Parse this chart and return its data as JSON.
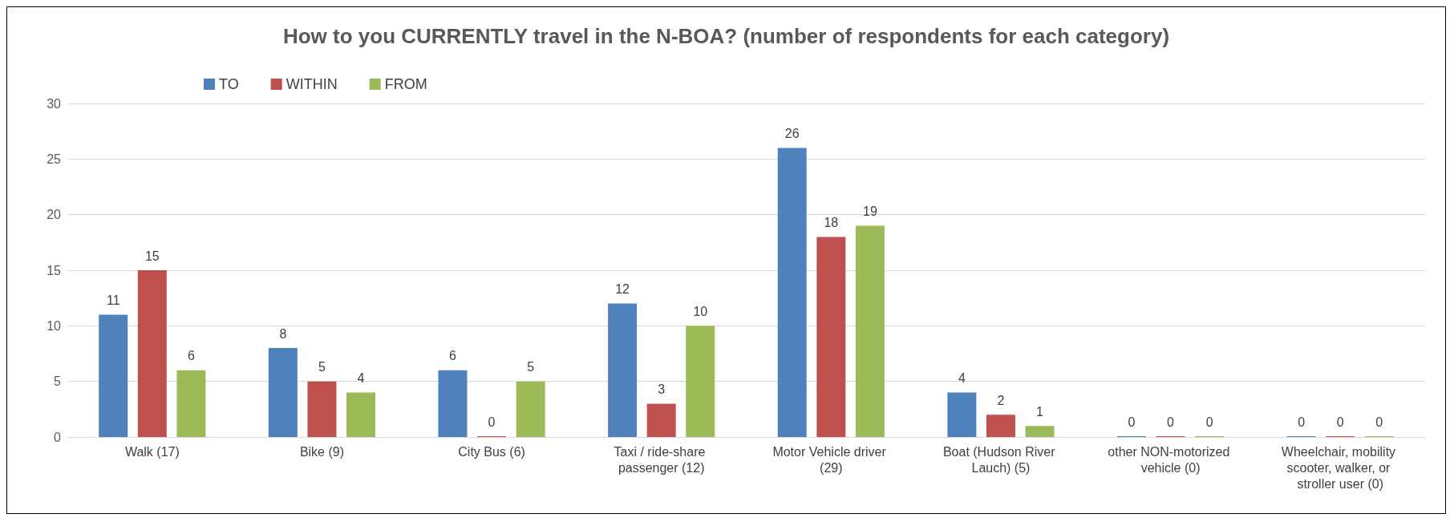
{
  "chart_data": {
    "type": "bar",
    "title": "How to you CURRENTLY travel in the N-BOA? (number of respondents for each category)",
    "categories": [
      "Walk (17)",
      "Bike (9)",
      "City Bus (6)",
      "Taxi / ride-share passenger (12)",
      "Motor Vehicle driver (29)",
      "Boat (Hudson River Lauch) (5)",
      "other NON-motorized vehicle (0)",
      "Wheelchair, mobility scooter, walker, or stroller user (0)"
    ],
    "series": [
      {
        "name": "TO",
        "color": "#4f81bd",
        "values": [
          11,
          8,
          6,
          12,
          26,
          4,
          0,
          0
        ]
      },
      {
        "name": "WITHIN",
        "color": "#c0504d",
        "values": [
          15,
          5,
          0,
          3,
          18,
          2,
          0,
          0
        ]
      },
      {
        "name": "FROM",
        "color": "#9bbb59",
        "values": [
          6,
          4,
          5,
          10,
          19,
          1,
          0,
          0
        ]
      }
    ],
    "ylim": [
      0,
      30
    ],
    "yticks": [
      0,
      5,
      10,
      15,
      20,
      25,
      30
    ],
    "grid": "y",
    "legend": "top left",
    "data_labels": true
  }
}
